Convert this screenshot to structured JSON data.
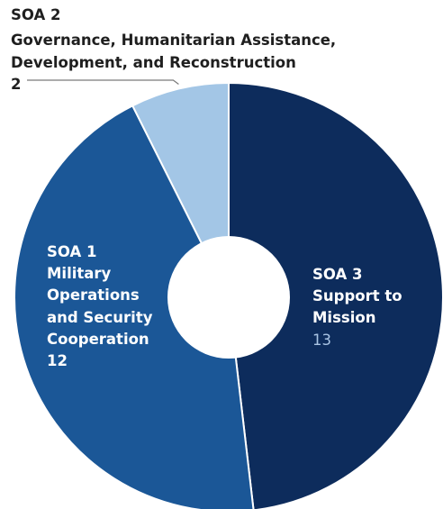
{
  "chart_data": {
    "type": "donut",
    "title": "",
    "slices": [
      {
        "id": "soa3",
        "code": "SOA 3",
        "lines": [
          "Support to",
          "Mission"
        ],
        "value": 13,
        "color": "#0d2c5c",
        "label_color": "#ffffff",
        "value_color": "#a9c4e4"
      },
      {
        "id": "soa1",
        "code": "SOA 1",
        "lines": [
          "Military",
          "Operations",
          "and Security",
          "Cooperation"
        ],
        "value": 12,
        "color": "#1b5797",
        "label_color": "#ffffff",
        "value_color": "#ffffff"
      },
      {
        "id": "soa2",
        "code": "SOA 2",
        "lines": [
          "Governance, Humanitarian Assistance,",
          "Development, and Reconstruction"
        ],
        "value": 2,
        "color": "#a3c6e6",
        "label_color": "#1f1f1f",
        "value_color": "#1f1f1f"
      }
    ]
  }
}
